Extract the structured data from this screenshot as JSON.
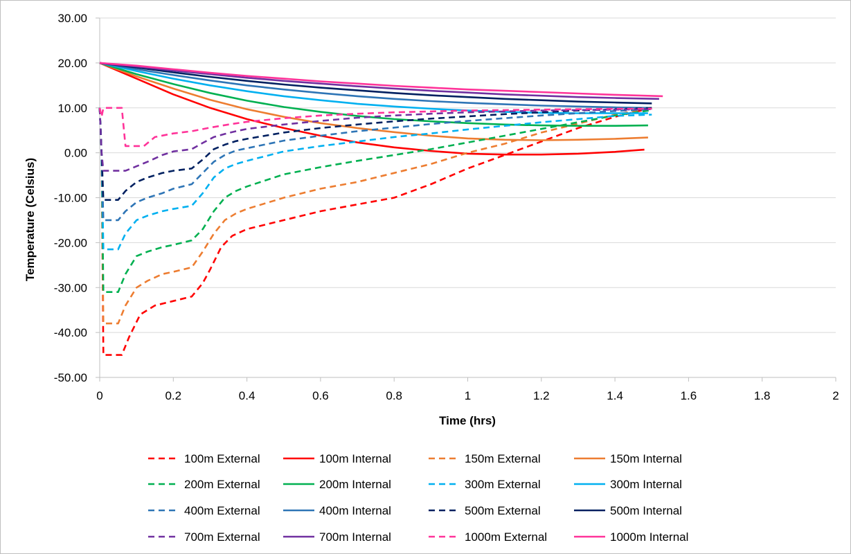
{
  "chart_data": {
    "type": "line",
    "title": "",
    "xlabel": "Time (hrs)",
    "ylabel": "Temperature (Celsius)",
    "xlim": [
      0,
      2
    ],
    "ylim": [
      -50,
      30
    ],
    "x_ticks": [
      0,
      0.2,
      0.4,
      0.6,
      0.8,
      1,
      1.2,
      1.4,
      1.6,
      1.8,
      2
    ],
    "x_tick_labels": [
      "0",
      "0.2",
      "0.4",
      "0.6",
      "0.8",
      "1",
      "1.2",
      "1.4",
      "1.6",
      "1.8",
      "2"
    ],
    "y_ticks": [
      -50,
      -40,
      -30,
      -20,
      -10,
      0,
      10,
      20,
      30
    ],
    "y_tick_labels": [
      "-50.00",
      "-40.00",
      "-30.00",
      "-20.00",
      "-10.00",
      "0.00",
      "10.00",
      "20.00",
      "30.00"
    ],
    "grid": "horizontal",
    "legend_position": "bottom",
    "series": [
      {
        "name": "100m External",
        "color": "#ff0000",
        "dash": true,
        "x": [
          0,
          0.005,
          0.01,
          0.03,
          0.06,
          0.08,
          0.11,
          0.15,
          0.2,
          0.25,
          0.28,
          0.3,
          0.33,
          0.36,
          0.4,
          0.5,
          0.6,
          0.7,
          0.8,
          0.9,
          1.0,
          1.1,
          1.2,
          1.3,
          1.4,
          1.5
        ],
        "y": [
          10,
          0,
          -45,
          -45,
          -45,
          -41,
          -36,
          -34,
          -33,
          -32,
          -29,
          -26,
          -21,
          -18.5,
          -17,
          -15,
          -13,
          -11.5,
          -10,
          -7,
          -3.5,
          -0.5,
          2.5,
          5.5,
          8,
          10
        ]
      },
      {
        "name": "100m Internal",
        "color": "#ff0000",
        "dash": false,
        "x": [
          0,
          0.1,
          0.2,
          0.3,
          0.4,
          0.5,
          0.6,
          0.7,
          0.8,
          0.9,
          1.0,
          1.1,
          1.2,
          1.3,
          1.4,
          1.48
        ],
        "y": [
          20,
          16.5,
          13,
          10,
          7.5,
          5.5,
          3.8,
          2.3,
          1.2,
          0.4,
          -0.2,
          -0.4,
          -0.4,
          -0.2,
          0.2,
          0.7
        ]
      },
      {
        "name": "150m External",
        "color": "#ed7d31",
        "dash": true,
        "x": [
          0,
          0.005,
          0.01,
          0.03,
          0.05,
          0.07,
          0.1,
          0.13,
          0.17,
          0.2,
          0.25,
          0.28,
          0.31,
          0.34,
          0.37,
          0.4,
          0.5,
          0.6,
          0.7,
          0.8,
          0.9,
          1.0,
          1.1,
          1.2,
          1.3,
          1.4,
          1.5
        ],
        "y": [
          10,
          0,
          -38,
          -38,
          -38,
          -34,
          -30,
          -28.5,
          -27,
          -26.5,
          -25.5,
          -22,
          -18,
          -15,
          -13.5,
          -12.5,
          -10,
          -8,
          -6.5,
          -4.5,
          -2.5,
          0,
          2,
          4.5,
          6.5,
          8.5,
          10
        ]
      },
      {
        "name": "150m Internal",
        "color": "#ed7d31",
        "dash": false,
        "x": [
          0,
          0.1,
          0.2,
          0.3,
          0.4,
          0.5,
          0.6,
          0.7,
          0.8,
          0.9,
          1.0,
          1.1,
          1.2,
          1.3,
          1.4,
          1.49
        ],
        "y": [
          20,
          17,
          14.3,
          11.8,
          9.7,
          8,
          6.6,
          5.5,
          4.6,
          3.8,
          3.2,
          2.9,
          2.8,
          2.9,
          3.1,
          3.4
        ]
      },
      {
        "name": "200m External",
        "color": "#00b050",
        "dash": true,
        "x": [
          0,
          0.005,
          0.01,
          0.03,
          0.05,
          0.07,
          0.1,
          0.13,
          0.17,
          0.2,
          0.25,
          0.28,
          0.31,
          0.34,
          0.37,
          0.4,
          0.5,
          0.6,
          0.7,
          0.8,
          0.9,
          1.0,
          1.1,
          1.2,
          1.3,
          1.4,
          1.5
        ],
        "y": [
          10,
          0,
          -31,
          -31,
          -31,
          -27,
          -23,
          -22,
          -21,
          -20.5,
          -19.5,
          -17,
          -13,
          -10,
          -8.5,
          -7.5,
          -4.8,
          -3.2,
          -1.8,
          -0.5,
          0.8,
          2.3,
          3.8,
          5.3,
          6.8,
          8.3,
          9.5
        ]
      },
      {
        "name": "200m Internal",
        "color": "#00b050",
        "dash": false,
        "x": [
          0,
          0.1,
          0.2,
          0.3,
          0.4,
          0.5,
          0.6,
          0.7,
          0.8,
          0.9,
          1.0,
          1.1,
          1.2,
          1.3,
          1.4,
          1.49
        ],
        "y": [
          20,
          17.5,
          15.3,
          13.3,
          11.6,
          10.2,
          9.1,
          8.2,
          7.5,
          7,
          6.6,
          6.3,
          6.1,
          6,
          6,
          6.1
        ]
      },
      {
        "name": "300m External",
        "color": "#00b0f0",
        "dash": true,
        "x": [
          0,
          0.005,
          0.01,
          0.03,
          0.05,
          0.07,
          0.1,
          0.13,
          0.17,
          0.2,
          0.25,
          0.28,
          0.31,
          0.34,
          0.37,
          0.4,
          0.5,
          0.6,
          0.7,
          0.8,
          0.9,
          1.0,
          1.1,
          1.2,
          1.3,
          1.4,
          1.5
        ],
        "y": [
          10,
          0,
          -21.5,
          -21.5,
          -21.5,
          -18,
          -15,
          -14,
          -13,
          -12.5,
          -11.8,
          -9,
          -5.5,
          -3.5,
          -2.5,
          -1.8,
          0.3,
          1.5,
          2.5,
          3.5,
          4.3,
          5.2,
          6,
          6.8,
          7.5,
          8.2,
          8.5
        ]
      },
      {
        "name": "300m Internal",
        "color": "#00b0f0",
        "dash": false,
        "x": [
          0,
          0.1,
          0.2,
          0.3,
          0.4,
          0.5,
          0.6,
          0.7,
          0.8,
          0.9,
          1.0,
          1.1,
          1.2,
          1.3,
          1.4,
          1.49
        ],
        "y": [
          20,
          18.2,
          16.5,
          15,
          13.7,
          12.6,
          11.7,
          10.9,
          10.3,
          9.8,
          9.4,
          9.1,
          8.9,
          8.8,
          8.8,
          8.8
        ]
      },
      {
        "name": "400m External",
        "color": "#2e75b6",
        "dash": true,
        "x": [
          0,
          0.005,
          0.01,
          0.03,
          0.05,
          0.07,
          0.1,
          0.13,
          0.17,
          0.2,
          0.25,
          0.28,
          0.31,
          0.34,
          0.37,
          0.4,
          0.5,
          0.6,
          0.7,
          0.8,
          0.9,
          1.0,
          1.1,
          1.2,
          1.3,
          1.4,
          1.5
        ],
        "y": [
          10,
          0,
          -15,
          -15,
          -15,
          -13,
          -11,
          -10,
          -9,
          -8,
          -7,
          -4.5,
          -2,
          -0.5,
          0.5,
          1,
          2.7,
          3.8,
          4.8,
          5.6,
          6.4,
          7.1,
          7.7,
          8.3,
          8.8,
          9.3,
          9.7
        ]
      },
      {
        "name": "400m Internal",
        "color": "#2e75b6",
        "dash": false,
        "x": [
          0,
          0.1,
          0.2,
          0.3,
          0.4,
          0.5,
          0.6,
          0.7,
          0.8,
          0.9,
          1.0,
          1.1,
          1.2,
          1.3,
          1.4,
          1.49
        ],
        "y": [
          20,
          18.6,
          17.3,
          16.1,
          15,
          14.1,
          13.3,
          12.6,
          12,
          11.5,
          11.1,
          10.8,
          10.5,
          10.3,
          10.1,
          10
        ]
      },
      {
        "name": "500m External",
        "color": "#002060",
        "dash": true,
        "x": [
          0,
          0.005,
          0.01,
          0.03,
          0.05,
          0.07,
          0.1,
          0.13,
          0.17,
          0.2,
          0.25,
          0.28,
          0.31,
          0.34,
          0.37,
          0.4,
          0.5,
          0.6,
          0.7,
          0.8,
          0.9,
          1.0,
          1.1,
          1.2,
          1.3,
          1.4,
          1.5
        ],
        "y": [
          10,
          0,
          -10.5,
          -10.5,
          -10.5,
          -8.5,
          -6.5,
          -5.5,
          -4.5,
          -4,
          -3.5,
          -1.5,
          0.8,
          1.8,
          2.6,
          3.1,
          4.5,
          5.5,
          6.3,
          7,
          7.6,
          8.1,
          8.6,
          9,
          9.4,
          9.7,
          10
        ]
      },
      {
        "name": "500m Internal",
        "color": "#002060",
        "dash": false,
        "x": [
          0,
          0.1,
          0.2,
          0.3,
          0.4,
          0.5,
          0.6,
          0.7,
          0.8,
          0.9,
          1.0,
          1.1,
          1.2,
          1.3,
          1.4,
          1.5
        ],
        "y": [
          20,
          19,
          17.9,
          16.9,
          16,
          15.2,
          14.5,
          13.9,
          13.3,
          12.8,
          12.4,
          12,
          11.7,
          11.4,
          11.2,
          11
        ]
      },
      {
        "name": "700m External",
        "color": "#7030a0",
        "dash": true,
        "x": [
          0,
          0.005,
          0.01,
          0.02,
          0.03,
          0.05,
          0.07,
          0.1,
          0.13,
          0.17,
          0.2,
          0.25,
          0.28,
          0.31,
          0.34,
          0.37,
          0.4,
          0.5,
          0.6,
          0.7,
          0.8,
          0.9,
          1.0,
          1.1,
          1.2,
          1.3,
          1.4,
          1.5
        ],
        "y": [
          10,
          0,
          -4,
          -4,
          -4,
          -4,
          -4,
          -3,
          -2,
          -0.5,
          0.3,
          0.8,
          2.2,
          3.5,
          4.2,
          4.8,
          5.3,
          6.3,
          7.1,
          7.8,
          8.3,
          8.7,
          9,
          9.2,
          9.4,
          9.5,
          9.6,
          9.7
        ]
      },
      {
        "name": "700m Internal",
        "color": "#7030a0",
        "dash": false,
        "x": [
          0,
          0.1,
          0.2,
          0.3,
          0.4,
          0.5,
          0.6,
          0.7,
          0.8,
          0.9,
          1.0,
          1.1,
          1.2,
          1.3,
          1.4,
          1.52
        ],
        "y": [
          20,
          19.2,
          18.3,
          17.5,
          16.7,
          16,
          15.4,
          14.8,
          14.3,
          13.8,
          13.4,
          13,
          12.7,
          12.4,
          12.2,
          12
        ]
      },
      {
        "name": "1000m External",
        "color": "#ff3399",
        "dash": true,
        "x": [
          0,
          0.005,
          0.01,
          0.02,
          0.03,
          0.04,
          0.05,
          0.06,
          0.07,
          0.09,
          0.12,
          0.15,
          0.2,
          0.25,
          0.3,
          0.35,
          0.4,
          0.5,
          0.6,
          0.7,
          0.8,
          0.9,
          1.0,
          1.1,
          1.2,
          1.3,
          1.4,
          1.5
        ],
        "y": [
          10,
          8,
          10,
          10,
          10,
          10,
          10,
          10,
          1.5,
          1.5,
          1.5,
          3.5,
          4.3,
          4.8,
          5.6,
          6.3,
          6.9,
          7.7,
          8.3,
          8.7,
          9,
          9.2,
          9.4,
          9.5,
          9.6,
          9.7,
          9.8,
          9.8
        ]
      },
      {
        "name": "1000m Internal",
        "color": "#ff3399",
        "dash": false,
        "x": [
          0,
          0.1,
          0.2,
          0.3,
          0.4,
          0.5,
          0.6,
          0.7,
          0.8,
          0.9,
          1.0,
          1.1,
          1.2,
          1.3,
          1.4,
          1.53
        ],
        "y": [
          20,
          19.4,
          18.6,
          17.8,
          17.1,
          16.5,
          15.9,
          15.4,
          14.9,
          14.5,
          14.1,
          13.8,
          13.5,
          13.2,
          12.9,
          12.6
        ]
      }
    ]
  }
}
